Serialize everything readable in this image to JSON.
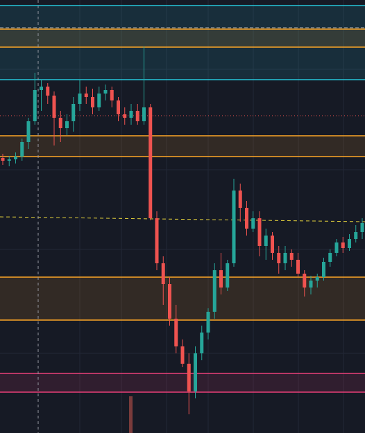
{
  "chart_data": {
    "type": "candlestick",
    "ylim": [
      0,
      625
    ],
    "up_color": "#26a69a",
    "down_color": "#ef5350",
    "open": [
      397,
      393,
      395,
      399,
      420,
      450,
      495,
      500,
      487,
      455,
      440,
      450,
      475,
      490,
      485,
      470,
      490,
      495,
      480,
      460,
      455,
      465,
      450,
      470,
      310,
      245,
      215,
      165,
      125,
      100,
      60,
      115,
      145,
      175,
      235,
      210,
      245,
      350,
      325,
      295,
      310,
      270,
      285,
      260,
      245,
      260,
      250,
      230,
      210,
      220,
      225,
      247,
      260,
      275,
      267,
      280,
      290
    ],
    "close": [
      393,
      395,
      399,
      420,
      450,
      495,
      500,
      487,
      455,
      440,
      450,
      475,
      490,
      485,
      470,
      490,
      495,
      480,
      460,
      455,
      465,
      450,
      470,
      310,
      245,
      215,
      165,
      125,
      100,
      60,
      115,
      145,
      175,
      235,
      210,
      245,
      350,
      325,
      295,
      310,
      270,
      285,
      260,
      245,
      260,
      250,
      230,
      210,
      220,
      225,
      247,
      260,
      275,
      267,
      280,
      290,
      303
    ],
    "high": [
      403,
      400,
      405,
      425,
      455,
      520,
      510,
      505,
      493,
      465,
      460,
      485,
      510,
      500,
      497,
      500,
      503,
      500,
      485,
      470,
      475,
      475,
      558,
      475,
      320,
      255,
      225,
      185,
      135,
      115,
      125,
      155,
      180,
      245,
      260,
      250,
      367,
      360,
      335,
      320,
      320,
      295,
      290,
      270,
      270,
      265,
      260,
      235,
      227,
      230,
      253,
      265,
      280,
      283,
      287,
      300,
      310
    ],
    "low": [
      387,
      385,
      389,
      393,
      410,
      445,
      465,
      475,
      415,
      420,
      430,
      435,
      465,
      475,
      460,
      465,
      480,
      470,
      450,
      445,
      445,
      445,
      445,
      307,
      235,
      185,
      155,
      115,
      95,
      27,
      50,
      105,
      135,
      165,
      200,
      205,
      240,
      305,
      285,
      290,
      255,
      250,
      250,
      230,
      235,
      240,
      225,
      197,
      200,
      210,
      220,
      240,
      255,
      260,
      263,
      275,
      280
    ],
    "zones": [
      {
        "low": 510,
        "high": 617,
        "color": "#26c6da"
      },
      {
        "low": 557,
        "high": 583,
        "color": "#ffa726"
      },
      {
        "low": 399,
        "high": 429,
        "color": "#ffa726"
      },
      {
        "low": 163,
        "high": 225,
        "color": "#ffa726"
      },
      {
        "low": 59,
        "high": 86,
        "color": "#ec407a"
      }
    ],
    "lines": [
      {
        "value": 585,
        "color": "#b2b5be",
        "style": "dashed"
      },
      {
        "value": 458,
        "color": "#ef5350",
        "style": "dotted"
      }
    ],
    "trendline": {
      "values": [
        312,
        305
      ],
      "color": "#e6d33c"
    }
  }
}
